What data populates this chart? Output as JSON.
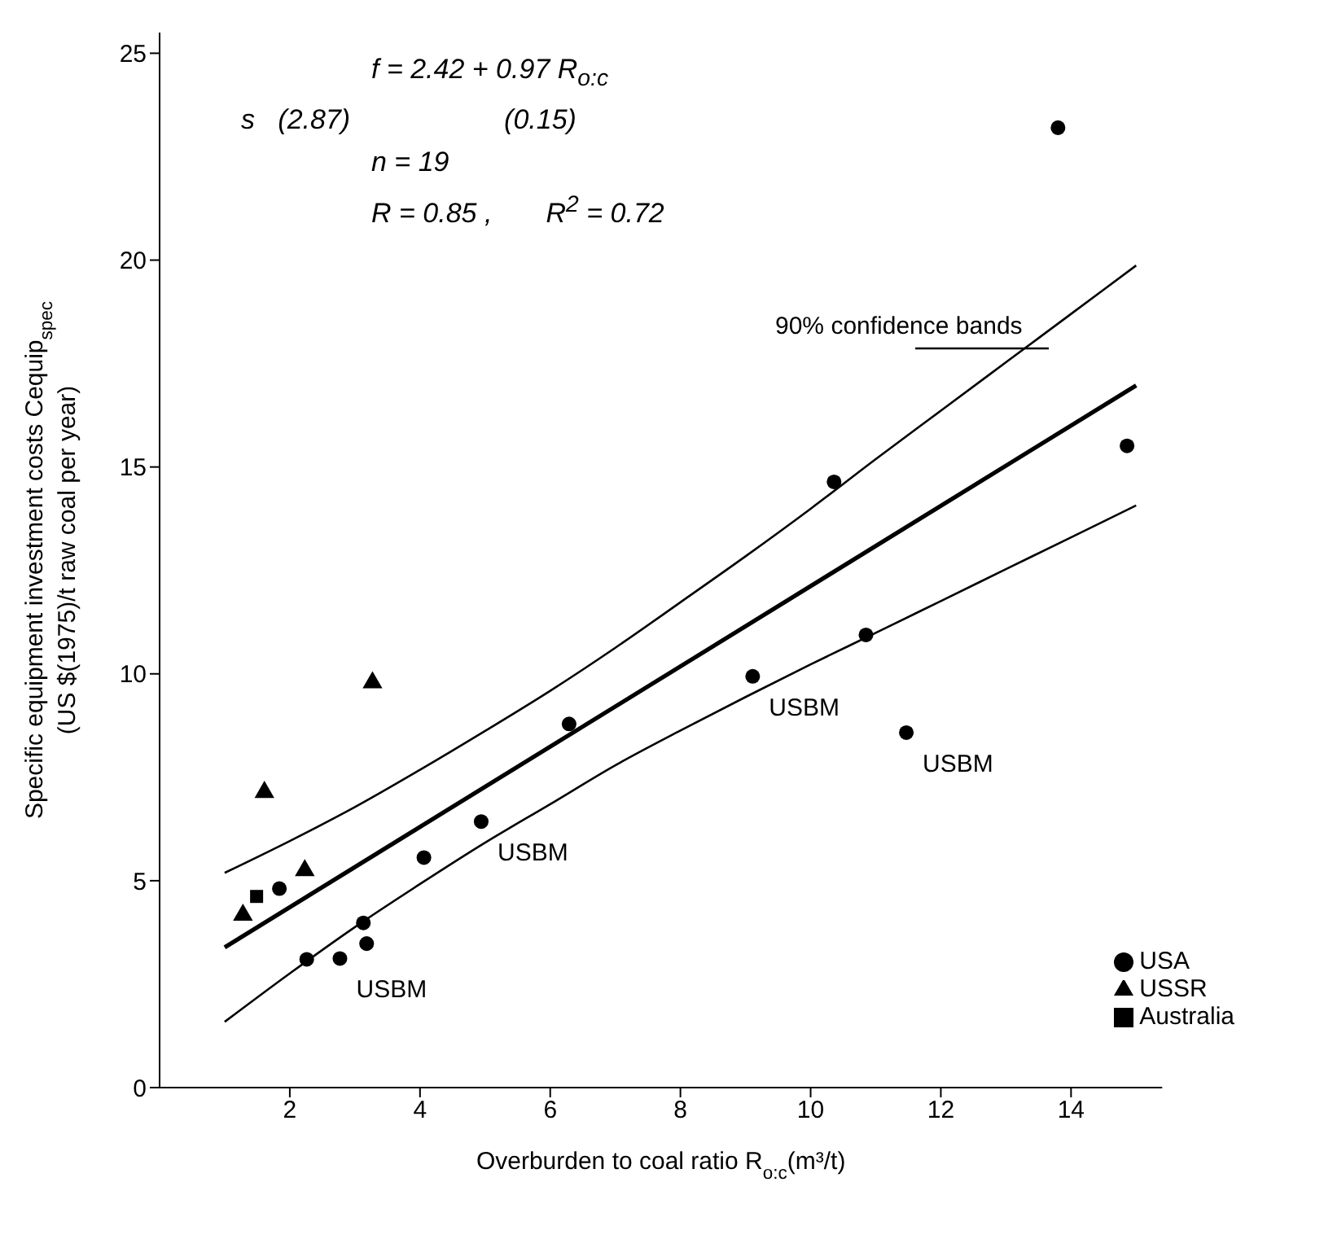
{
  "chart_data": {
    "type": "scatter",
    "xlabel": "Overburden to coal ratio R$_{o:c}$(m³/t)",
    "ylabel": "Specific equipment investment costs Cequip$_{spec}$\n(US $(1975)/t raw coal per year)",
    "xlim": [
      0,
      15.4
    ],
    "xticks": [
      2,
      4,
      6,
      8,
      10,
      12,
      14
    ],
    "ylim": [
      0,
      25.5
    ],
    "yticks": [
      0,
      5,
      10,
      15,
      20,
      25
    ],
    "grid": false,
    "legend": "bottom right",
    "series": [
      {
        "name": "USA",
        "marker": "circle",
        "color": "#000000",
        "x": [
          1.84,
          2.26,
          2.77,
          3.13,
          3.18,
          4.06,
          4.94,
          6.29,
          9.11,
          10.36,
          10.85,
          11.47,
          13.8,
          14.86
        ],
        "values": [
          4.81,
          3.1,
          3.12,
          3.98,
          3.48,
          5.56,
          6.43,
          8.79,
          9.94,
          14.64,
          10.94,
          8.58,
          23.2,
          15.51
        ]
      },
      {
        "name": "USSR",
        "marker": "triangle",
        "color": "#000000",
        "x": [
          1.28,
          1.61,
          2.23,
          3.27
        ],
        "values": [
          4.17,
          7.14,
          5.25,
          9.79
        ]
      },
      {
        "name": "Australia",
        "marker": "square",
        "color": "#000000",
        "x": [
          1.49
        ],
        "values": [
          4.62
        ]
      },
      {
        "type": "line",
        "marker": "none",
        "line_style": "solid",
        "color": "#000000",
        "x": [
          1,
          15
        ],
        "values": [
          3.39,
          16.97
        ]
      },
      {
        "type": "line",
        "marker": "none",
        "line_style": "solid",
        "color": "#000000",
        "x": [
          1,
          2,
          3,
          4,
          5,
          6,
          7,
          8,
          9,
          10,
          11,
          12,
          13,
          14,
          15
        ],
        "values": [
          5.19,
          5.96,
          6.78,
          7.68,
          8.62,
          9.59,
          10.63,
          11.73,
          12.84,
          13.99,
          15.19,
          16.36,
          17.53,
          18.7,
          19.87
        ]
      },
      {
        "type": "line",
        "marker": "none",
        "line_style": "solid",
        "color": "#000000",
        "x": [
          1,
          2,
          3,
          4,
          5,
          6,
          7,
          8,
          9,
          10,
          11,
          12,
          13,
          14,
          15
        ],
        "values": [
          1.59,
          2.76,
          3.88,
          4.92,
          5.92,
          6.85,
          7.79,
          8.63,
          9.44,
          10.23,
          10.99,
          11.76,
          12.53,
          13.3,
          14.07
        ]
      }
    ],
    "annotations": [
      "f = 2.42 + 0.97 R$_{o:c}$",
      "s   (2.87)                    (0.15)",
      "n = 19",
      "R = 0.85 ,       R$^{2}$ = 0.72",
      "90% confidence bands",
      {
        "text": "USBM",
        "x": 2.77,
        "y": 3.12
      },
      {
        "text": "USBM",
        "x": 4.94,
        "y": 6.43
      },
      {
        "text": "USBM",
        "x": 9.11,
        "y": 9.94
      },
      {
        "text": "USBM",
        "x": 11.47,
        "y": 8.58
      }
    ]
  }
}
